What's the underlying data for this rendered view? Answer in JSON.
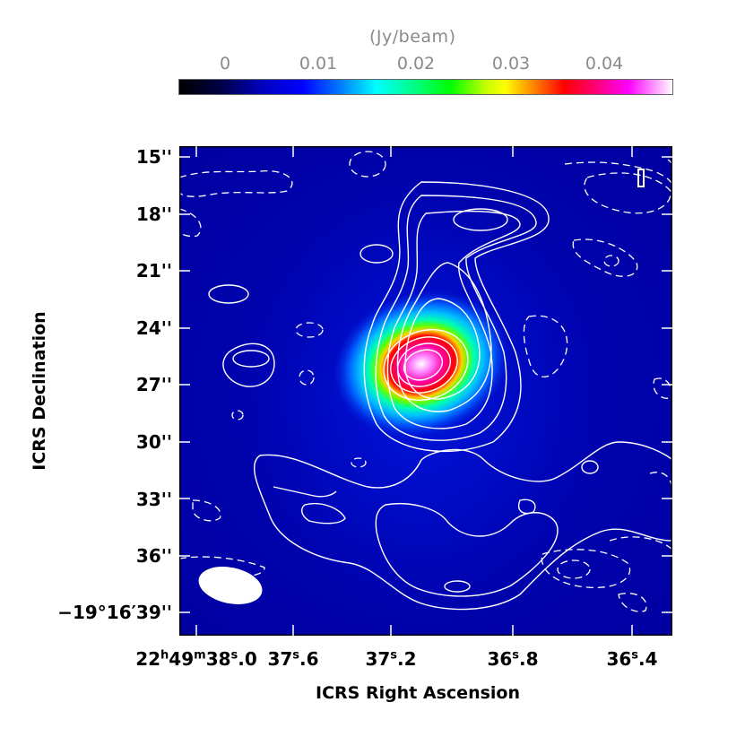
{
  "colorbar": {
    "title": "(Jy/beam)",
    "ticks": [
      "0",
      "0.01",
      "0.02",
      "0.03",
      "0.04"
    ],
    "tick_values": [
      0,
      0.01,
      0.02,
      0.03,
      0.04
    ],
    "range": [
      -0.0025,
      0.0465
    ],
    "colormap": [
      "#000000",
      "#0000a0",
      "#0000ff",
      "#00a0ff",
      "#00ffff",
      "#00ff80",
      "#00ff00",
      "#b0ff00",
      "#ffff00",
      "#ffa000",
      "#ff0000",
      "#ff0070",
      "#ff00ff",
      "#ff80ff",
      "#ffffff"
    ]
  },
  "yaxis": {
    "title": "ICRS Declination",
    "ticks": [
      "15''",
      "18''",
      "21''",
      "24''",
      "27''",
      "30''",
      "33''",
      "36''",
      "−19°16′39''"
    ]
  },
  "xaxis": {
    "title": "ICRS Right Ascension",
    "ticks": [
      {
        "main": "22",
        "h": "h",
        "mid": "49",
        "m": "m",
        "sec": "38",
        "s": "s",
        "frac": ".0"
      },
      {
        "main": "",
        "h": "",
        "mid": "",
        "m": "",
        "sec": "37",
        "s": "s",
        "frac": ".6"
      },
      {
        "main": "",
        "h": "",
        "mid": "",
        "m": "",
        "sec": "37",
        "s": "s",
        "frac": ".2"
      },
      {
        "main": "",
        "h": "",
        "mid": "",
        "m": "",
        "sec": "36",
        "s": "s",
        "frac": ".8"
      },
      {
        "main": "",
        "h": "",
        "mid": "",
        "m": "",
        "sec": "36",
        "s": "s",
        "frac": ".4"
      }
    ]
  },
  "image": {
    "background_color": "#0000a8",
    "peak_color": "#ffffff",
    "contour_color": "#ffffff"
  }
}
